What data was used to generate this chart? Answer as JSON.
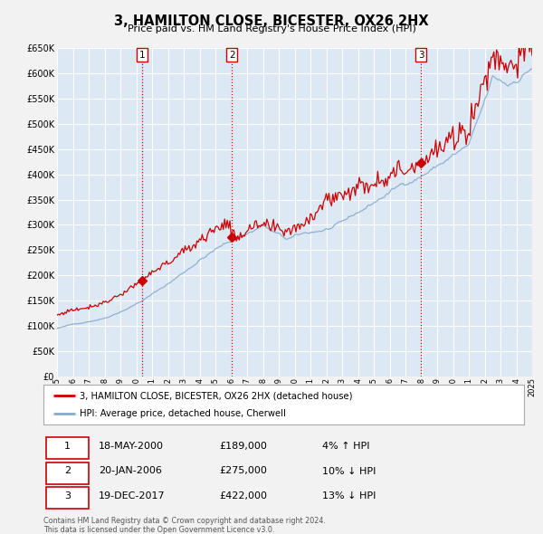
{
  "title": "3, HAMILTON CLOSE, BICESTER, OX26 2HX",
  "subtitle": "Price paid vs. HM Land Registry's House Price Index (HPI)",
  "plot_bg_color": "#dde8f5",
  "grid_color": "#c0cfe0",
  "legend_label_red": "3, HAMILTON CLOSE, BICESTER, OX26 2HX (detached house)",
  "legend_label_blue": "HPI: Average price, detached house, Cherwell",
  "sale_labels": [
    "1",
    "2",
    "3"
  ],
  "sale_dates": [
    "18-MAY-2000",
    "20-JAN-2006",
    "19-DEC-2017"
  ],
  "sale_prices": [
    "£189,000",
    "£275,000",
    "£422,000"
  ],
  "sale_hpi": [
    "4% ↑ HPI",
    "10% ↓ HPI",
    "13% ↓ HPI"
  ],
  "sale_years": [
    2000.38,
    2006.05,
    2017.97
  ],
  "sale_values": [
    189000,
    275000,
    422000
  ],
  "footnote": "Contains HM Land Registry data © Crown copyright and database right 2024.\nThis data is licensed under the Open Government Licence v3.0.",
  "xmin": 1995,
  "xmax": 2025,
  "ymin": 0,
  "ymax": 650000,
  "yticks": [
    0,
    50000,
    100000,
    150000,
    200000,
    250000,
    300000,
    350000,
    400000,
    450000,
    500000,
    550000,
    600000,
    650000
  ],
  "ytick_labels": [
    "£0",
    "£50K",
    "£100K",
    "£150K",
    "£200K",
    "£250K",
    "£300K",
    "£350K",
    "£400K",
    "£450K",
    "£500K",
    "£550K",
    "£600K",
    "£650K"
  ],
  "red_color": "#cc0000",
  "blue_color": "#88aacc",
  "vline_color": "#cc0000"
}
